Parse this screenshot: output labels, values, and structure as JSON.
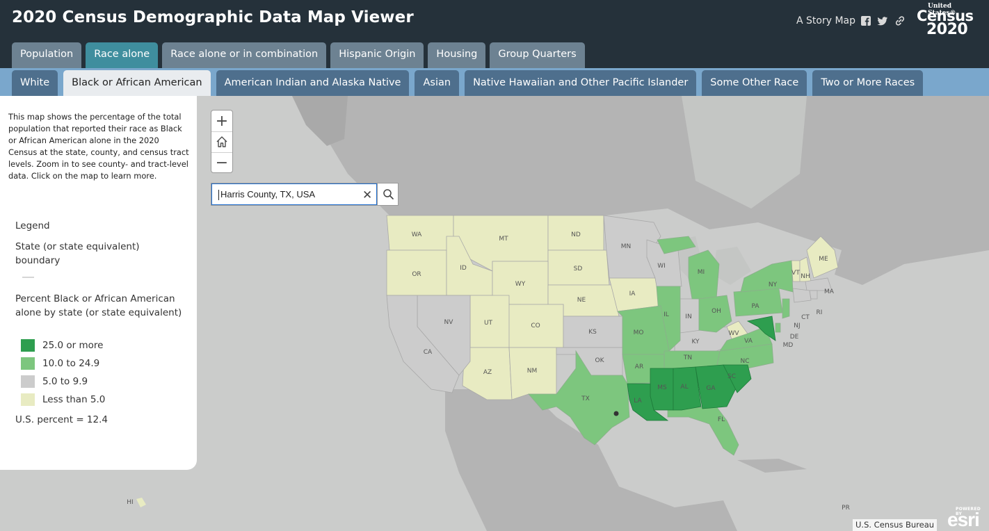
{
  "header": {
    "title": "2020 Census Demographic Data Map Viewer",
    "story_link": "A Story Map",
    "logo": {
      "line1": "United States®",
      "line2": "Census",
      "line3": "2020"
    }
  },
  "main_tabs": [
    {
      "label": "Population",
      "active": false
    },
    {
      "label": "Race alone",
      "active": true
    },
    {
      "label": "Race alone or in combination",
      "active": false
    },
    {
      "label": "Hispanic Origin",
      "active": false
    },
    {
      "label": "Housing",
      "active": false
    },
    {
      "label": "Group Quarters",
      "active": false
    }
  ],
  "sub_tabs": [
    {
      "label": "White",
      "active": false
    },
    {
      "label": "Black or African American",
      "active": true
    },
    {
      "label": "American Indian and Alaska Native",
      "active": false
    },
    {
      "label": "Asian",
      "active": false
    },
    {
      "label": "Native Hawaiian and Other Pacific Islander",
      "active": false
    },
    {
      "label": "Some Other Race",
      "active": false
    },
    {
      "label": "Two or More Races",
      "active": false
    }
  ],
  "panel": {
    "intro": "This map shows the percentage of the total population that reported their race as Black or African American alone in the 2020 Census at the state, county, and census tract levels. Zoom in to see county- and tract-level data. Click on the map to learn more.",
    "legend_title": "Legend",
    "boundary_label": "State (or state equivalent) boundary",
    "percent_label": "Percent Black or African American alone by state (or state equivalent)",
    "legend_items": [
      {
        "label": "25.0 or more",
        "color": "#2e9e4f"
      },
      {
        "label": "10.0 to 24.9",
        "color": "#7dc67e"
      },
      {
        "label": "5.0 to 9.9",
        "color": "#cccccc"
      },
      {
        "label": "Less than 5.0",
        "color": "#e8ebc2"
      }
    ],
    "us_percent": "U.S. percent = 12.4"
  },
  "search": {
    "value": "Harris County, TX, USA"
  },
  "zoom": {
    "in": "+",
    "out": "−"
  },
  "map": {
    "state_labels": [
      "WA",
      "MT",
      "ND",
      "MN",
      "OR",
      "ID",
      "SD",
      "WI",
      "MI",
      "NY",
      "VT",
      "NH",
      "ME",
      "MA",
      "RI",
      "CT",
      "WY",
      "NE",
      "IA",
      "IL",
      "IN",
      "OH",
      "PA",
      "NJ",
      "DE",
      "MD",
      "NV",
      "UT",
      "CO",
      "KS",
      "MO",
      "KY",
      "WV",
      "VA",
      "CA",
      "OK",
      "AR",
      "TN",
      "NC",
      "AZ",
      "NM",
      "TX",
      "MS",
      "AL",
      "GA",
      "SC",
      "LA",
      "FL",
      "HI",
      "PR"
    ],
    "colors": {
      "high": "#2e9e4f",
      "mid": "#7dc67e",
      "low": "#cccccc",
      "lowest": "#e8ebc2"
    }
  },
  "attribution": "U.S. Census Bureau",
  "esri": {
    "powered": "POWERED BY",
    "logo": "esri"
  }
}
